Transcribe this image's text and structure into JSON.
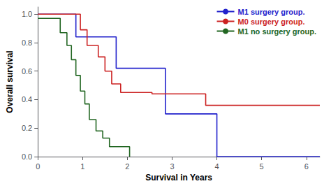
{
  "chart_data": {
    "type": "step",
    "xlabel": "Survival in Years",
    "ylabel": "Overall survival",
    "xlim": [
      0,
      6.3
    ],
    "ylim": [
      0.0,
      1.05
    ],
    "xticks": [
      0,
      1,
      2,
      3,
      4,
      5,
      6
    ],
    "yticks": [
      {
        "value": 0.0,
        "label": "0.0"
      },
      {
        "value": 0.2,
        "label": "0.2"
      },
      {
        "value": 0.4,
        "label": "0.4"
      },
      {
        "value": 0.6,
        "label": "0.6"
      },
      {
        "value": 0.8,
        "label": "0.8"
      },
      {
        "value": 1.0,
        "label": "1.0"
      }
    ],
    "grid": false,
    "legend": "upper right",
    "series": [
      {
        "name": "M1 surgery group.",
        "color": "#2222cc",
        "x": [
          0,
          0.85,
          0.85,
          1.0,
          1.0,
          1.55,
          1.55,
          1.75,
          1.75,
          2.1,
          2.1,
          2.6,
          2.6,
          2.85,
          2.85,
          3.7,
          3.7,
          4.0,
          4.0,
          6.3
        ],
        "values": [
          1.0,
          1.0,
          0.84,
          0.84,
          0.84,
          0.84,
          0.84,
          0.84,
          0.62,
          0.62,
          0.62,
          0.62,
          0.62,
          0.62,
          0.3,
          0.3,
          0.3,
          0.3,
          0.0,
          0.0
        ]
      },
      {
        "name": "M0 surgery group.",
        "color": "#cc2222",
        "x": [
          0,
          0.95,
          0.95,
          1.1,
          1.1,
          1.35,
          1.35,
          1.5,
          1.5,
          1.65,
          1.65,
          1.85,
          1.85,
          2.0,
          2.0,
          2.55,
          2.55,
          3.75,
          3.75,
          4.05,
          4.05,
          6.3
        ],
        "values": [
          1.0,
          1.0,
          0.89,
          0.89,
          0.78,
          0.78,
          0.7,
          0.7,
          0.6,
          0.6,
          0.51,
          0.51,
          0.45,
          0.45,
          0.45,
          0.45,
          0.44,
          0.44,
          0.36,
          0.36,
          0.36,
          0.36
        ]
      },
      {
        "name": "M1 no surgery group.",
        "color": "#226622",
        "x": [
          0,
          0.5,
          0.5,
          0.65,
          0.65,
          0.75,
          0.75,
          0.85,
          0.85,
          0.95,
          0.95,
          1.05,
          1.05,
          1.15,
          1.15,
          1.3,
          1.3,
          1.45,
          1.45,
          1.6,
          1.6,
          1.8,
          1.8,
          2.05,
          2.05
        ],
        "values": [
          0.97,
          0.97,
          0.87,
          0.87,
          0.78,
          0.78,
          0.68,
          0.68,
          0.57,
          0.57,
          0.46,
          0.46,
          0.37,
          0.37,
          0.26,
          0.26,
          0.18,
          0.18,
          0.13,
          0.13,
          0.07,
          0.07,
          0.07,
          0.07,
          0.0
        ]
      }
    ]
  }
}
